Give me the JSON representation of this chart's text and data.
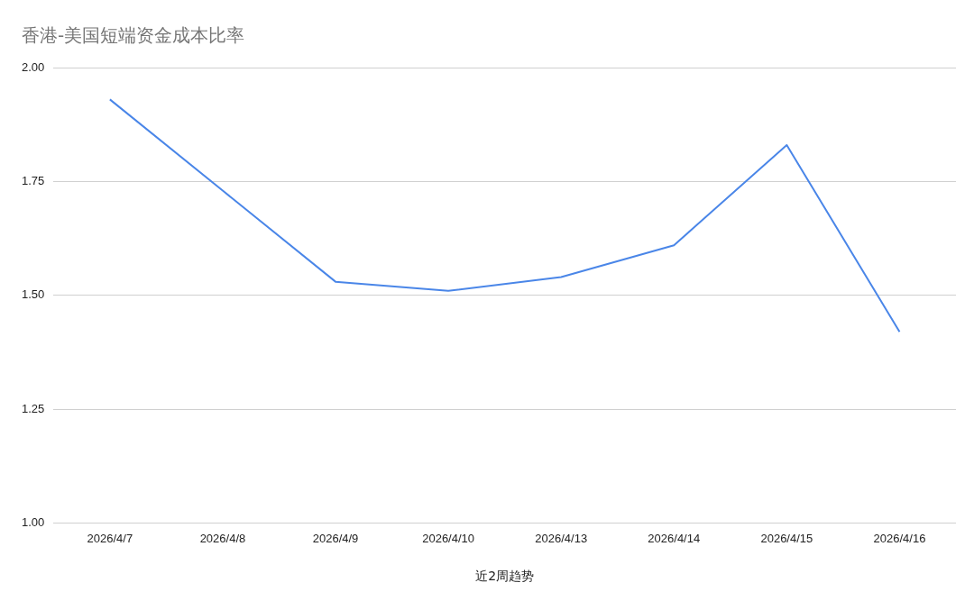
{
  "chart_data": {
    "type": "line",
    "title": "香港-美国短端资金成本比率",
    "xlabel": "近2周趋势",
    "categories": [
      "2026/4/7",
      "2026/4/8",
      "2026/4/9",
      "2026/4/10",
      "2026/4/13",
      "2026/4/14",
      "2026/4/15",
      "2026/4/16"
    ],
    "series": [
      {
        "color": "#4a86e8",
        "values": [
          1.93,
          1.73,
          1.53,
          1.51,
          1.54,
          1.61,
          1.83,
          1.42
        ]
      }
    ],
    "ylim": [
      1,
      2
    ],
    "yticks": [
      {
        "value": 1,
        "label": "1.00"
      },
      {
        "value": 1.25,
        "label": "1.25"
      },
      {
        "value": 1.5,
        "label": "1.50"
      },
      {
        "value": 1.75,
        "label": "1.75"
      },
      {
        "value": 2,
        "label": "2.00"
      }
    ],
    "grid": "y",
    "legend": false,
    "marker": "none",
    "line_style": "solid"
  }
}
